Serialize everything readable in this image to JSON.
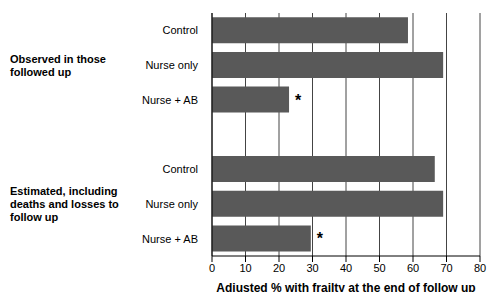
{
  "chart_data": {
    "type": "bar",
    "orientation": "horizontal",
    "categories": [
      "Control",
      "Nurse only",
      "Nurse + AB",
      null,
      "Control",
      "Nurse only",
      "Nurse + AB"
    ],
    "values": [
      58.5,
      69,
      23,
      null,
      66.5,
      69,
      29.5
    ],
    "color": "#595959",
    "group_labels": [
      {
        "text": "Observed in those followed up",
        "categories": [
          0,
          1,
          2
        ]
      },
      {
        "text": "Estimated, including deaths and losses to follow up",
        "categories": [
          4,
          5,
          6
        ]
      }
    ],
    "annotations": [
      {
        "text": "*",
        "index": 2
      },
      {
        "text": "*",
        "index": 6
      }
    ],
    "xlabel": "Adjusted % with frailty at the end of follow up",
    "xlim": [
      0,
      80
    ],
    "xticks": [
      0,
      10,
      20,
      30,
      40,
      50,
      60,
      70,
      80
    ],
    "grid": true
  }
}
